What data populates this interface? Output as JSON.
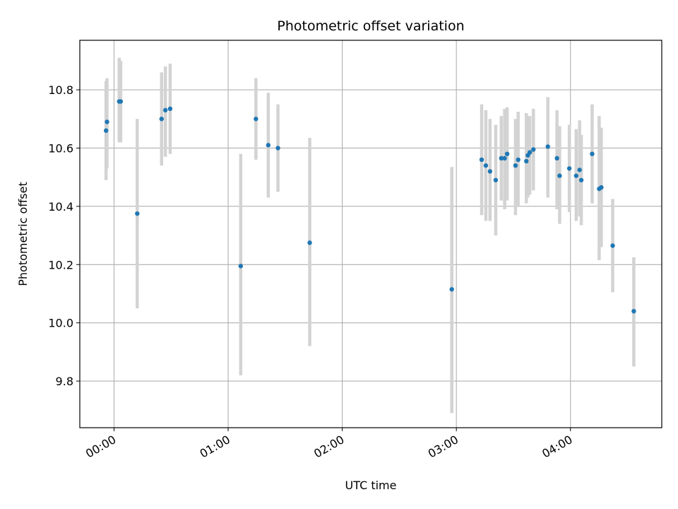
{
  "chart_data": {
    "type": "scatter",
    "title": "Photometric offset variation",
    "xlabel": "UTC time",
    "ylabel": "Photometric offset",
    "x_units": "minutes since 00:00 UTC",
    "xlim": [
      -18,
      288
    ],
    "ylim": [
      9.64,
      10.97
    ],
    "xticks": [
      0,
      60,
      120,
      180,
      240
    ],
    "xtick_labels": [
      "00:00",
      "01:00",
      "02:00",
      "03:00",
      "04:00"
    ],
    "yticks": [
      9.8,
      10.0,
      10.2,
      10.4,
      10.6,
      10.8
    ],
    "ytick_labels": [
      "9.8",
      "10.0",
      "10.2",
      "10.4",
      "10.6",
      "10.8"
    ],
    "grid": true,
    "point_color": "#1f77b4",
    "errorbar_color": "#d3d3d3",
    "points": [
      {
        "x": -4.2,
        "y": 10.66,
        "ylo": 10.49,
        "yhi": 10.83
      },
      {
        "x": -3.7,
        "y": 10.69,
        "ylo": 10.53,
        "yhi": 10.84
      },
      {
        "x": 2.7,
        "y": 10.76,
        "ylo": 10.62,
        "yhi": 10.91
      },
      {
        "x": 3.5,
        "y": 10.76,
        "ylo": 10.62,
        "yhi": 10.9
      },
      {
        "x": 12.2,
        "y": 10.375,
        "ylo": 10.05,
        "yhi": 10.7
      },
      {
        "x": 25.0,
        "y": 10.7,
        "ylo": 10.54,
        "yhi": 10.86
      },
      {
        "x": 27.0,
        "y": 10.73,
        "ylo": 10.57,
        "yhi": 10.88
      },
      {
        "x": 29.5,
        "y": 10.735,
        "ylo": 10.58,
        "yhi": 10.89
      },
      {
        "x": 66.6,
        "y": 10.195,
        "ylo": 9.82,
        "yhi": 10.58
      },
      {
        "x": 74.6,
        "y": 10.7,
        "ylo": 10.56,
        "yhi": 10.84
      },
      {
        "x": 81.1,
        "y": 10.61,
        "ylo": 10.43,
        "yhi": 10.79
      },
      {
        "x": 86.2,
        "y": 10.6,
        "ylo": 10.45,
        "yhi": 10.75
      },
      {
        "x": 102.9,
        "y": 10.275,
        "ylo": 9.92,
        "yhi": 10.635
      },
      {
        "x": 177.6,
        "y": 10.115,
        "ylo": 9.69,
        "yhi": 10.535
      },
      {
        "x": 193.3,
        "y": 10.56,
        "ylo": 10.37,
        "yhi": 10.75
      },
      {
        "x": 195.5,
        "y": 10.54,
        "ylo": 10.35,
        "yhi": 10.73
      },
      {
        "x": 197.7,
        "y": 10.52,
        "ylo": 10.35,
        "yhi": 10.7
      },
      {
        "x": 200.7,
        "y": 10.49,
        "ylo": 10.3,
        "yhi": 10.68
      },
      {
        "x": 203.6,
        "y": 10.565,
        "ylo": 10.42,
        "yhi": 10.71
      },
      {
        "x": 205.4,
        "y": 10.565,
        "ylo": 10.39,
        "yhi": 10.735
      },
      {
        "x": 206.7,
        "y": 10.58,
        "ylo": 10.42,
        "yhi": 10.74
      },
      {
        "x": 211.1,
        "y": 10.54,
        "ylo": 10.37,
        "yhi": 10.7
      },
      {
        "x": 212.5,
        "y": 10.56,
        "ylo": 10.4,
        "yhi": 10.725
      },
      {
        "x": 216.8,
        "y": 10.555,
        "ylo": 10.41,
        "yhi": 10.72
      },
      {
        "x": 217.6,
        "y": 10.575,
        "ylo": 10.43,
        "yhi": 10.71
      },
      {
        "x": 218.6,
        "y": 10.585,
        "ylo": 10.44,
        "yhi": 10.71
      },
      {
        "x": 220.5,
        "y": 10.595,
        "ylo": 10.455,
        "yhi": 10.735
      },
      {
        "x": 228.1,
        "y": 10.605,
        "ylo": 10.43,
        "yhi": 10.775
      },
      {
        "x": 232.9,
        "y": 10.565,
        "ylo": 10.39,
        "yhi": 10.73
      },
      {
        "x": 234.3,
        "y": 10.505,
        "ylo": 10.34,
        "yhi": 10.675
      },
      {
        "x": 239.4,
        "y": 10.53,
        "ylo": 10.38,
        "yhi": 10.68
      },
      {
        "x": 243.0,
        "y": 10.505,
        "ylo": 10.35,
        "yhi": 10.665
      },
      {
        "x": 244.8,
        "y": 10.525,
        "ylo": 10.365,
        "yhi": 10.695
      },
      {
        "x": 245.7,
        "y": 10.49,
        "ylo": 10.335,
        "yhi": 10.645
      },
      {
        "x": 251.4,
        "y": 10.58,
        "ylo": 10.41,
        "yhi": 10.75
      },
      {
        "x": 255.1,
        "y": 10.46,
        "ylo": 10.215,
        "yhi": 10.71
      },
      {
        "x": 256.2,
        "y": 10.465,
        "ylo": 10.26,
        "yhi": 10.67
      },
      {
        "x": 262.2,
        "y": 10.265,
        "ylo": 10.105,
        "yhi": 10.425
      },
      {
        "x": 273.3,
        "y": 10.04,
        "ylo": 9.85,
        "yhi": 10.225
      }
    ]
  }
}
